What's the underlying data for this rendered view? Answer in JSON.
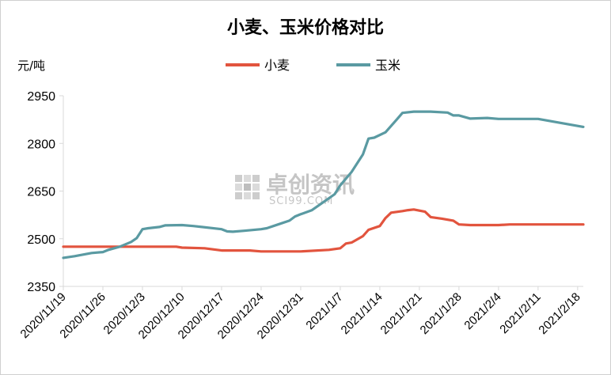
{
  "chart_data": {
    "type": "line",
    "title": "小麦、玉米价格对比",
    "ylabel": "元/吨",
    "ylim": [
      2350,
      2950
    ],
    "yticks": [
      2350,
      2500,
      2650,
      2800,
      2950
    ],
    "xtick_labels": [
      "2020/11/19",
      "2020/11/26",
      "2020/12/3",
      "2020/12/10",
      "2020/12/17",
      "2020/12/24",
      "2020/12/31",
      "2021/1/7",
      "2021/1/14",
      "2021/1/21",
      "2021/1/28",
      "2021/2/4",
      "2021/2/11",
      "2021/2/18"
    ],
    "x_start": "2020/11/19",
    "x_end": "2021/2/19",
    "legend_position": "top",
    "grid": false,
    "series": [
      {
        "name": "小麦",
        "color": "#e2543e",
        "points": [
          [
            "2020/11/19",
            2475
          ],
          [
            "2020/11/26",
            2475
          ],
          [
            "2020/12/3",
            2475
          ],
          [
            "2020/12/9",
            2475
          ],
          [
            "2020/12/10",
            2472
          ],
          [
            "2020/12/14",
            2470
          ],
          [
            "2020/12/17",
            2463
          ],
          [
            "2020/12/22",
            2463
          ],
          [
            "2020/12/24",
            2460
          ],
          [
            "2020/12/31",
            2460
          ],
          [
            "2021/1/5",
            2465
          ],
          [
            "2021/1/7",
            2470
          ],
          [
            "2021/1/8",
            2485
          ],
          [
            "2021/1/9",
            2488
          ],
          [
            "2021/1/11",
            2508
          ],
          [
            "2021/1/12",
            2528
          ],
          [
            "2021/1/14",
            2540
          ],
          [
            "2021/1/15",
            2565
          ],
          [
            "2021/1/16",
            2582
          ],
          [
            "2021/1/18",
            2587
          ],
          [
            "2021/1/19",
            2590
          ],
          [
            "2021/1/20",
            2592
          ],
          [
            "2021/1/22",
            2585
          ],
          [
            "2021/1/23",
            2568
          ],
          [
            "2021/1/25",
            2563
          ],
          [
            "2021/1/27",
            2557
          ],
          [
            "2021/1/28",
            2545
          ],
          [
            "2021/1/30",
            2543
          ],
          [
            "2021/2/1",
            2543
          ],
          [
            "2021/2/4",
            2543
          ],
          [
            "2021/2/6",
            2545
          ],
          [
            "2021/2/11",
            2545
          ],
          [
            "2021/2/19",
            2545
          ]
        ]
      },
      {
        "name": "玉米",
        "color": "#5a9aa2",
        "points": [
          [
            "2020/11/19",
            2440
          ],
          [
            "2020/11/21",
            2445
          ],
          [
            "2020/11/24",
            2455
          ],
          [
            "2020/11/26",
            2458
          ],
          [
            "2020/11/27",
            2465
          ],
          [
            "2020/11/29",
            2475
          ],
          [
            "2020/12/1",
            2490
          ],
          [
            "2020/12/2",
            2502
          ],
          [
            "2020/12/3",
            2530
          ],
          [
            "2020/12/4",
            2533
          ],
          [
            "2020/12/6",
            2537
          ],
          [
            "2020/12/7",
            2542
          ],
          [
            "2020/12/10",
            2543
          ],
          [
            "2020/12/12",
            2540
          ],
          [
            "2020/12/17",
            2530
          ],
          [
            "2020/12/18",
            2523
          ],
          [
            "2020/12/19",
            2522
          ],
          [
            "2020/12/21",
            2525
          ],
          [
            "2020/12/24",
            2530
          ],
          [
            "2020/12/25",
            2533
          ],
          [
            "2020/12/27",
            2545
          ],
          [
            "2020/12/29",
            2557
          ],
          [
            "2020/12/30",
            2570
          ],
          [
            "2020/12/31",
            2577
          ],
          [
            "2021/1/2",
            2590
          ],
          [
            "2021/1/4",
            2615
          ],
          [
            "2021/1/6",
            2640
          ],
          [
            "2021/1/7",
            2668
          ],
          [
            "2021/1/9",
            2710
          ],
          [
            "2021/1/11",
            2765
          ],
          [
            "2021/1/12",
            2815
          ],
          [
            "2021/1/13",
            2818
          ],
          [
            "2021/1/15",
            2835
          ],
          [
            "2021/1/17",
            2875
          ],
          [
            "2021/1/18",
            2896
          ],
          [
            "2021/1/20",
            2900
          ],
          [
            "2021/1/23",
            2900
          ],
          [
            "2021/1/26",
            2897
          ],
          [
            "2021/1/27",
            2888
          ],
          [
            "2021/1/28",
            2888
          ],
          [
            "2021/1/30",
            2878
          ],
          [
            "2021/2/2",
            2880
          ],
          [
            "2021/2/4",
            2877
          ],
          [
            "2021/2/11",
            2877
          ],
          [
            "2021/2/19",
            2852
          ]
        ]
      }
    ]
  },
  "watermark": {
    "main": "卓创资讯",
    "sub": "SCI99.COM"
  }
}
